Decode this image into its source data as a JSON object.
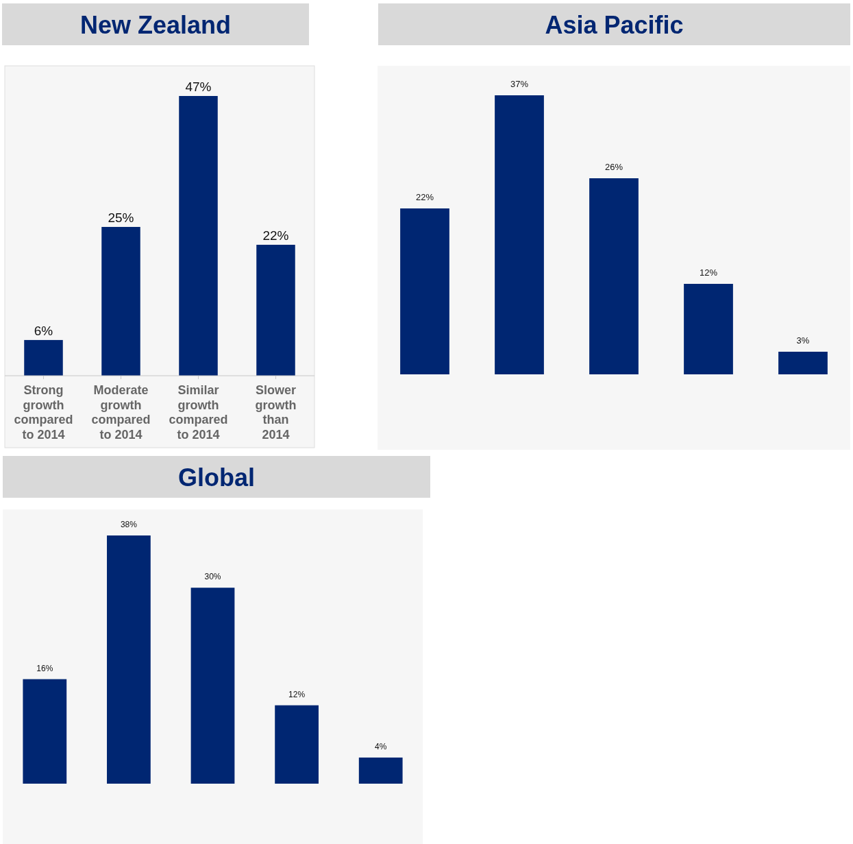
{
  "chart_data": [
    {
      "type": "bar",
      "title": "New Zealand",
      "categories": [
        "Strong growth compared to 2014",
        "Moderate growth compared to 2014",
        "Similar growth compared to 2014",
        "Slower growth than 2014"
      ],
      "values": [
        6,
        25,
        47,
        22
      ],
      "value_labels": [
        "6%",
        "25%",
        "47%",
        "22%"
      ],
      "color": "#002672"
    },
    {
      "type": "bar",
      "title": "Asia Pacific",
      "categories": [
        null,
        null,
        null,
        null,
        null
      ],
      "values": [
        22,
        37,
        26,
        12,
        3
      ],
      "value_labels": [
        "22%",
        "37%",
        "26%",
        "12%",
        "3%"
      ],
      "color": "#002672",
      "tick_labels": false
    },
    {
      "type": "bar",
      "title": "Global",
      "categories": [
        null,
        null,
        null,
        null,
        null
      ],
      "values": [
        16,
        38,
        30,
        12,
        4
      ],
      "value_labels": [
        "16%",
        "38%",
        "30%",
        "12%",
        "4%"
      ],
      "color": "#002672",
      "tick_labels": false
    }
  ]
}
